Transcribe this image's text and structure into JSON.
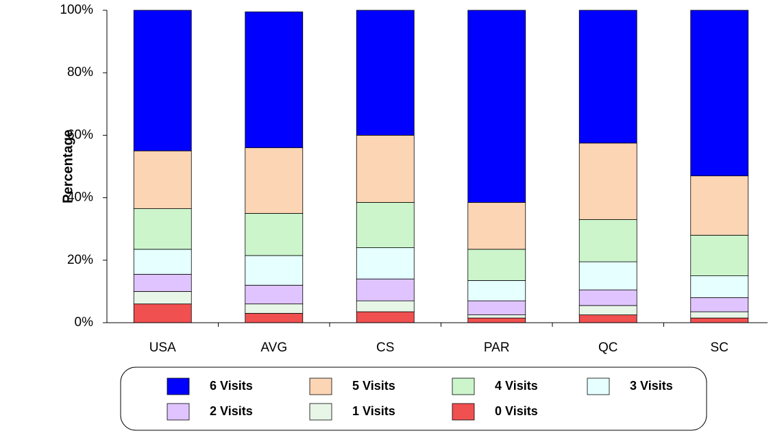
{
  "chart_data": {
    "type": "stacked_bar",
    "y_label": "Percentage",
    "categories": [
      "USA",
      "AVG",
      "CS",
      "PAR",
      "QC",
      "SC"
    ],
    "series": [
      {
        "name": "6 Visits",
        "color": "#0000ff",
        "values": [
          45,
          43.5,
          40,
          61.5,
          42.5,
          53
        ]
      },
      {
        "name": "5 Visits",
        "color": "#fcd5b4",
        "values": [
          18.5,
          21,
          21.5,
          15,
          24.5,
          19
        ]
      },
      {
        "name": "4 Visits",
        "color": "#ccf5cc",
        "values": [
          13,
          13.5,
          14.5,
          10,
          13.5,
          13
        ]
      },
      {
        "name": "3 Visits",
        "color": "#e6ffff",
        "values": [
          8,
          9.5,
          10,
          6.5,
          9,
          7
        ]
      },
      {
        "name": "2 Visits",
        "color": "#e0c4ff",
        "values": [
          5.5,
          6,
          7,
          4.5,
          5,
          4.5
        ]
      },
      {
        "name": "1 Visits",
        "color": "#e8f6e8",
        "values": [
          4,
          3,
          3.5,
          1,
          3,
          2
        ]
      },
      {
        "name": "0 Visits",
        "color": "#f05050",
        "values": [
          6,
          3,
          3.5,
          1.5,
          2.5,
          1.5
        ]
      }
    ],
    "ylim": [
      0,
      100
    ],
    "yticks": [
      {
        "value": 0,
        "label": "0%"
      },
      {
        "value": 20,
        "label": "20%"
      },
      {
        "value": 40,
        "label": "40%"
      },
      {
        "value": 60,
        "label": "60%"
      },
      {
        "value": 80,
        "label": "80%"
      },
      {
        "value": 100,
        "label": "100%"
      }
    ],
    "legend": "bottom"
  }
}
